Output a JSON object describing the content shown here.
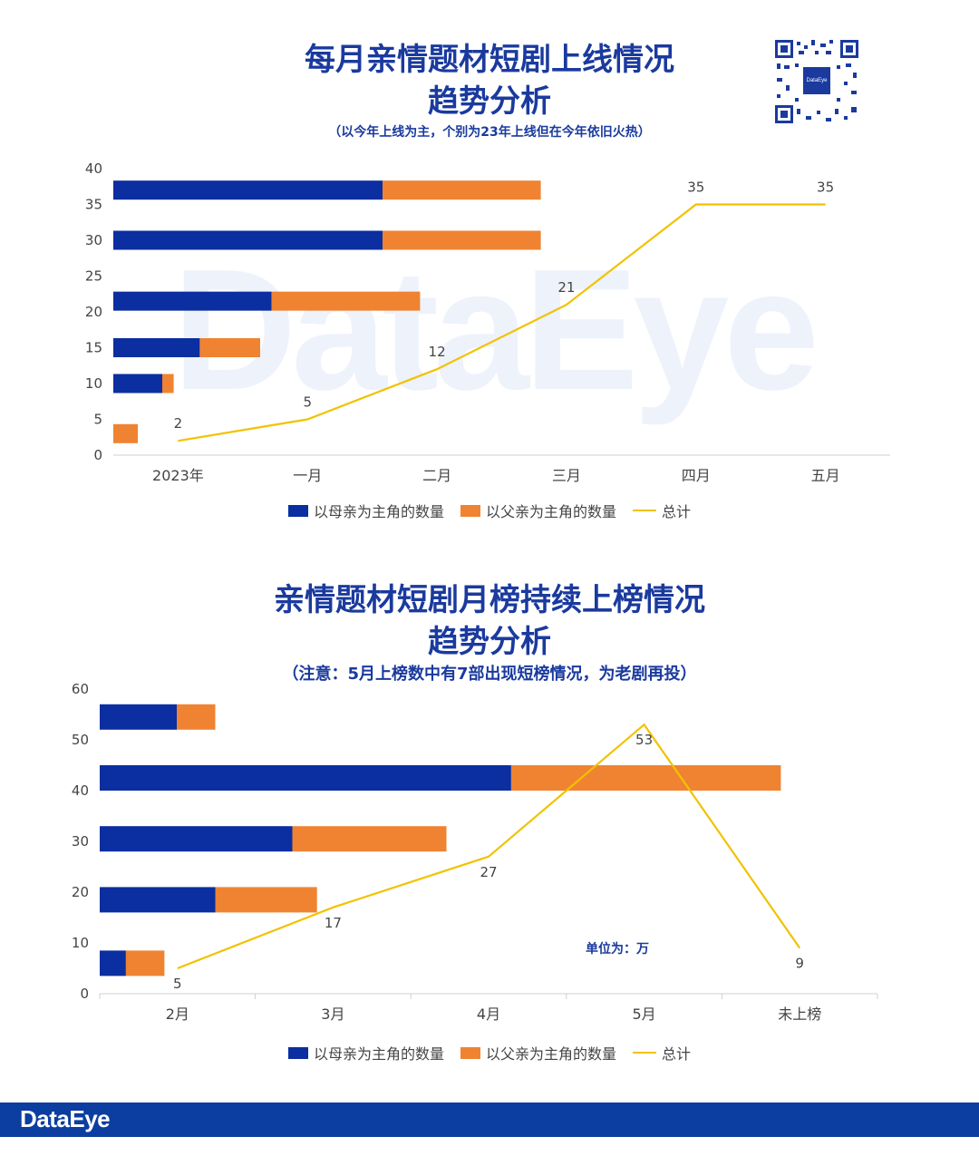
{
  "chart1": {
    "title_line1": "每月亲情题材短剧上线情况",
    "title_line2": "趋势分析",
    "subtitle": "（以今年上线为主，个别为23年上线但在今年依旧火热）"
  },
  "chart2": {
    "title_line1": "亲情题材短剧月榜持续上榜情况",
    "title_line2": "趋势分析",
    "subtitle": "（注意：5月上榜数中有7部出现短榜情况，为老剧再投）",
    "unit_note": "单位为：万"
  },
  "legend": {
    "mother": "以母亲为主角的数量",
    "father": "以父亲为主角的数量",
    "total": "总计"
  },
  "watermark": "DataEye",
  "qr": {
    "center_text": "DataEye"
  },
  "footer": {
    "logo": "DataEye"
  },
  "colors": {
    "mother": "#0b2ea0",
    "father": "#ef8332",
    "total": "#f2c200",
    "brand": "#1a3a9e"
  },
  "chart_data": [
    {
      "type": "bar",
      "title": "每月亲情题材短剧上线情况 趋势分析",
      "categories": [
        "2023年",
        "一月",
        "二月",
        "三月",
        "四月",
        "五月"
      ],
      "ylim": [
        0,
        40
      ],
      "yticks": [
        0,
        5,
        10,
        15,
        20,
        25,
        30,
        35,
        40
      ],
      "series": [
        {
          "name": "以母亲为主角的数量",
          "values": [
            0,
            3,
            5.3,
            9.7,
            16.5,
            16.5
          ]
        },
        {
          "name": "以父亲为主角的数量",
          "values": [
            1.5,
            0.7,
            3.7,
            9.1,
            9.7,
            9.7
          ]
        },
        {
          "name": "总计",
          "values": [
            2,
            5,
            12,
            21,
            35,
            35
          ]
        }
      ],
      "bar_y": [
        3,
        10,
        15,
        21.5,
        30,
        37
      ],
      "total_labels": [
        "2",
        "5",
        "12",
        "21",
        "35",
        "35"
      ],
      "legend_position": "bottom"
    },
    {
      "type": "bar",
      "title": "亲情题材短剧月榜持续上榜情况 趋势分析",
      "categories": [
        "2月",
        "3月",
        "4月",
        "5月",
        "未上榜"
      ],
      "ylim": [
        0,
        60
      ],
      "yticks": [
        0,
        10,
        20,
        30,
        40,
        50,
        60
      ],
      "series": [
        {
          "name": "以母亲为主角的数量",
          "values": [
            1.7,
            7.5,
            12.5,
            26.7,
            5
          ]
        },
        {
          "name": "以父亲为主角的数量",
          "values": [
            2.5,
            6.6,
            10,
            17.5,
            2.5
          ]
        },
        {
          "name": "总计",
          "values": [
            5,
            17,
            27,
            53,
            9
          ]
        }
      ],
      "bar_y": [
        6,
        18.5,
        30.5,
        42.5,
        54.5
      ],
      "total_labels": [
        "5",
        "17",
        "27",
        "53",
        "9"
      ],
      "legend_position": "bottom"
    }
  ]
}
